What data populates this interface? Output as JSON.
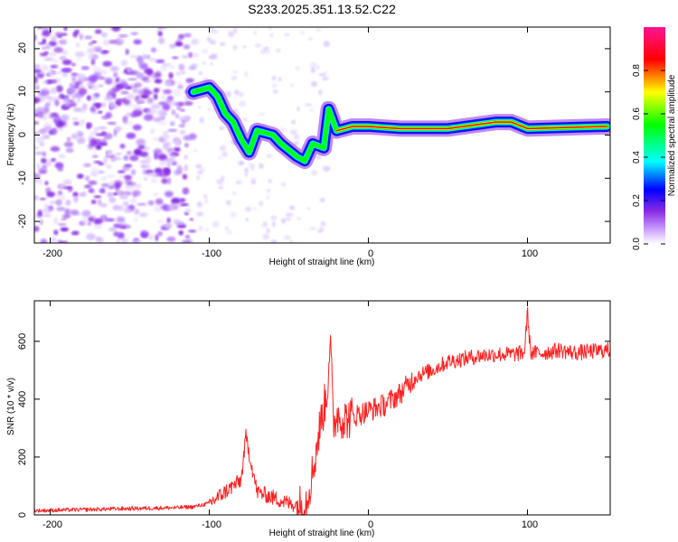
{
  "title": "S233.2025.351.13.52.C22",
  "spectrogram": {
    "type": "heatmap",
    "xlabel": "Height of straight line (km)",
    "ylabel": "Frequency (Hz)",
    "xlim": [
      -210,
      152
    ],
    "ylim": [
      -25,
      25
    ],
    "xticks": [
      -200,
      -100,
      0,
      100
    ],
    "xtick_labels": [
      "-200",
      "-100",
      "0",
      "100"
    ],
    "yticks": [
      -20,
      -10,
      0,
      10,
      20
    ],
    "ytick_labels": [
      "-20",
      "-10",
      "0",
      "10",
      "20"
    ],
    "ridge": [
      {
        "x": -110,
        "f": 10
      },
      {
        "x": -100,
        "f": 11
      },
      {
        "x": -95,
        "f": 9
      },
      {
        "x": -90,
        "f": 5
      },
      {
        "x": -85,
        "f": 3
      },
      {
        "x": -80,
        "f": -1
      },
      {
        "x": -75,
        "f": -4
      },
      {
        "x": -70,
        "f": 1
      },
      {
        "x": -60,
        "f": 0
      },
      {
        "x": -55,
        "f": -2
      },
      {
        "x": -45,
        "f": -5
      },
      {
        "x": -40,
        "f": -6
      },
      {
        "x": -35,
        "f": -2
      },
      {
        "x": -28,
        "f": -3
      },
      {
        "x": -25,
        "f": 6
      },
      {
        "x": -20,
        "f": 1
      },
      {
        "x": -10,
        "f": 2
      },
      {
        "x": 0,
        "f": 2
      },
      {
        "x": 20,
        "f": 1.5
      },
      {
        "x": 50,
        "f": 1.5
      },
      {
        "x": 80,
        "f": 3
      },
      {
        "x": 90,
        "f": 3
      },
      {
        "x": 100,
        "f": 1.5
      },
      {
        "x": 150,
        "f": 2
      }
    ]
  },
  "colorbar": {
    "label": "Normalized spectral amplitude",
    "ticks": [
      0.0,
      0.2,
      0.4,
      0.6,
      0.8
    ],
    "tick_labels": [
      "0.0",
      "0.2",
      "0.4",
      "0.6",
      "0.8"
    ],
    "colors": [
      "#ffffff",
      "#9a3cff",
      "#0000ff",
      "#00ffff",
      "#00ff00",
      "#ffff00",
      "#ff0000",
      "#ff1a8c"
    ]
  },
  "chart_data": {
    "type": "line",
    "title": "S233.2025.351.13.52.C22",
    "xlabel": "Height of straight line (km)",
    "ylabel": "SNR (10 * v/v)",
    "xlim": [
      -210,
      152
    ],
    "ylim": [
      0,
      740
    ],
    "xticks": [
      -200,
      -100,
      0,
      100
    ],
    "xtick_labels": [
      "-200",
      "-100",
      "0",
      "100"
    ],
    "yticks": [
      0,
      200,
      400,
      600
    ],
    "ytick_labels": [
      "0",
      "200",
      "400",
      "600"
    ],
    "series": [
      {
        "name": "SNR",
        "color": "#ff2020",
        "x": [
          -210,
          -180,
          -150,
          -120,
          -110,
          -100,
          -90,
          -80,
          -77,
          -70,
          -60,
          -50,
          -40,
          -35,
          -30,
          -26,
          -24,
          -22,
          -20,
          -15,
          -10,
          -5,
          0,
          10,
          20,
          30,
          40,
          50,
          60,
          70,
          80,
          90,
          98,
          100,
          102,
          110,
          120,
          130,
          140,
          152
        ],
        "y": [
          15,
          18,
          22,
          25,
          28,
          40,
          80,
          120,
          270,
          80,
          60,
          40,
          30,
          150,
          320,
          420,
          620,
          300,
          350,
          330,
          340,
          350,
          360,
          380,
          420,
          480,
          500,
          530,
          540,
          550,
          555,
          555,
          560,
          700,
          560,
          560,
          570,
          560,
          565,
          570
        ]
      }
    ]
  }
}
